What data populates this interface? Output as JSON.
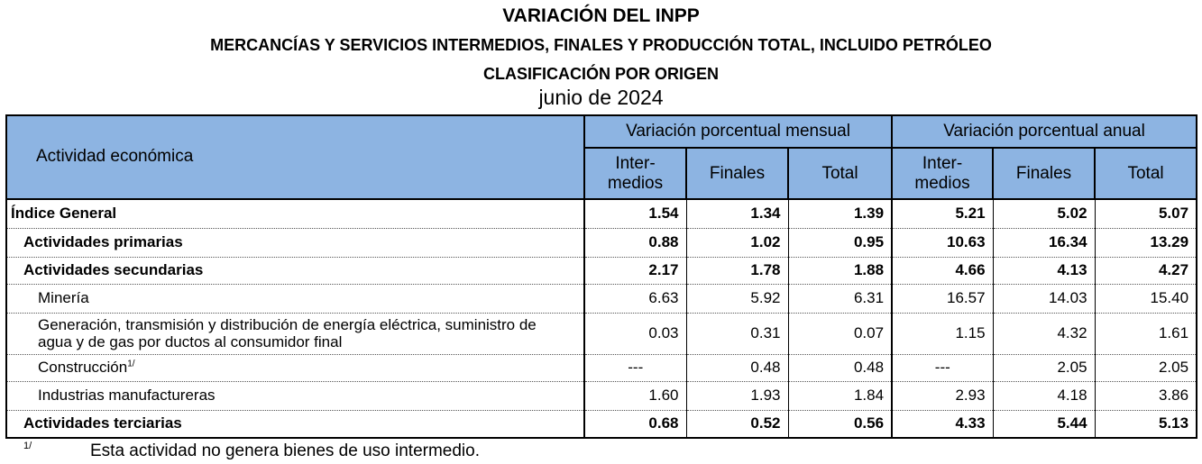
{
  "header": {
    "title": "VARIACIÓN DEL INPP",
    "subtitle": "MERCANCÍAS Y SERVICIOS INTERMEDIOS, FINALES Y PRODUCCIÓN TOTAL, INCLUIDO PETRÓLEO",
    "classification": "CLASIFICACIÓN POR ORIGEN",
    "period": "junio de 2024"
  },
  "table": {
    "label_header": "Actividad económica",
    "groups": [
      "Variación porcentual mensual",
      "Variación porcentual anual"
    ],
    "columns": [
      [
        "Inter-",
        "medios"
      ],
      "Finales",
      "Total",
      [
        "Inter-",
        "medios"
      ],
      "Finales",
      "Total"
    ],
    "rows": [
      {
        "label": "Índice General",
        "values": [
          "1.54",
          "1.34",
          "1.39",
          "5.21",
          "5.02",
          "5.07"
        ]
      },
      {
        "label": "Actividades primarias",
        "values": [
          "0.88",
          "1.02",
          "0.95",
          "10.63",
          "16.34",
          "13.29"
        ]
      },
      {
        "label": "Actividades secundarias",
        "values": [
          "2.17",
          "1.78",
          "1.88",
          "4.66",
          "4.13",
          "4.27"
        ]
      },
      {
        "label": "Minería",
        "values": [
          "6.63",
          "5.92",
          "6.31",
          "16.57",
          "14.03",
          "15.40"
        ]
      },
      {
        "label": "Generación, transmisión y distribución de energía eléctrica, suministro de agua y de gas por ductos al consumidor final",
        "values": [
          "0.03",
          "0.31",
          "0.07",
          "1.15",
          "4.32",
          "1.61"
        ]
      },
      {
        "label": "Construcción",
        "note": "1/",
        "values": [
          "---",
          "0.48",
          "0.48",
          "---",
          "2.05",
          "2.05"
        ]
      },
      {
        "label": "Industrias manufactureras",
        "values": [
          "1.60",
          "1.93",
          "1.84",
          "2.93",
          "4.18",
          "3.86"
        ]
      },
      {
        "label": "Actividades terciarias",
        "values": [
          "0.68",
          "0.52",
          "0.56",
          "4.33",
          "5.44",
          "5.13"
        ]
      }
    ]
  },
  "footnote": {
    "marker": "1/",
    "text": "Esta actividad no genera bienes de uso intermedio."
  }
}
